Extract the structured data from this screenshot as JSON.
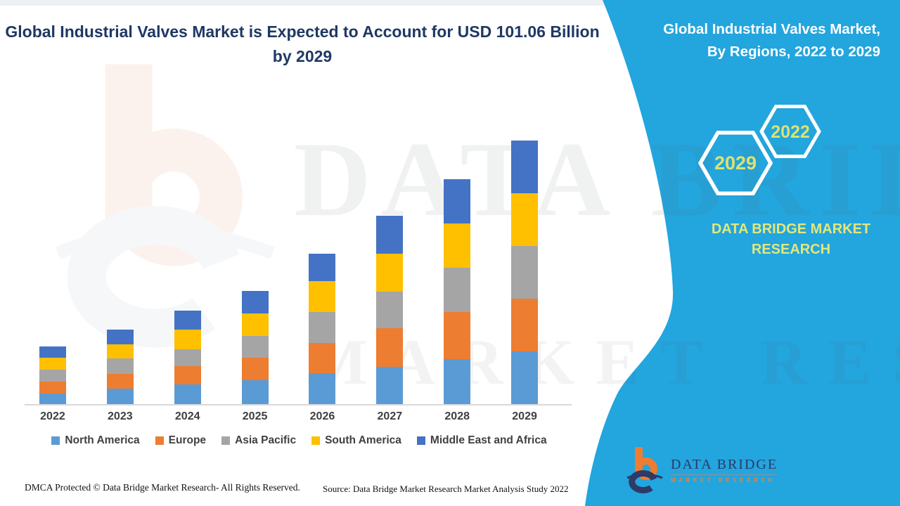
{
  "header": {
    "title": "Global Industrial Valves Market is Expected to Account for USD 101.06 Billion by 2029",
    "title_color": "#1F3864"
  },
  "side_panel": {
    "background_color": "#23A5DE",
    "heading_line1": "Global Industrial Valves Market,",
    "heading_line2": "By Regions, 2022 to 2029",
    "hexagons": [
      {
        "label": "2022"
      },
      {
        "label": "2029"
      }
    ],
    "brand_text": "DATA BRIDGE MARKET RESEARCH",
    "accent_text_color": "#DDE26E"
  },
  "chart_data": {
    "type": "bar",
    "stacked": true,
    "title": "Global Industrial Valves Market, By Regions, 2022 to 2029",
    "xlabel": "",
    "ylabel": "",
    "unit": "USD billion (estimated from bar heights; 2029 total given as 101.06)",
    "gridlines": false,
    "legend_position": "bottom",
    "categories": [
      "2022",
      "2023",
      "2024",
      "2025",
      "2026",
      "2027",
      "2028",
      "2029"
    ],
    "series": [
      {
        "name": "North America",
        "color": "#5B9BD5",
        "values": [
          4.0,
          5.8,
          7.5,
          9.2,
          11.9,
          14.4,
          17.2,
          20.2
        ]
      },
      {
        "name": "Europe",
        "color": "#ED7D31",
        "values": [
          4.7,
          5.8,
          7.1,
          8.5,
          11.6,
          14.8,
          18.0,
          20.2
        ]
      },
      {
        "name": "Asia Pacific",
        "color": "#A5A5A5",
        "values": [
          4.5,
          5.8,
          6.5,
          8.5,
          11.9,
          13.9,
          17.1,
          20.2
        ]
      },
      {
        "name": "South America",
        "color": "#FFC000",
        "values": [
          4.5,
          5.6,
          7.4,
          8.7,
          11.9,
          14.6,
          17.1,
          20.2
        ]
      },
      {
        "name": "Middle East and Africa",
        "color": "#4472C4",
        "values": [
          4.3,
          5.7,
          7.4,
          8.4,
          10.5,
          14.6,
          16.9,
          20.26
        ]
      }
    ],
    "totals_estimated": [
      22.0,
      28.7,
      35.9,
      43.3,
      57.8,
      72.3,
      86.3,
      101.06
    ],
    "note": "2029 total labeled as USD 101.06 billion in headline"
  },
  "watermarks": {
    "row1": "DATA BRIDGE",
    "row2": "MARKET RESEARCH"
  },
  "footer": {
    "dmca": "DMCA Protected © Data Bridge Market Research- All Rights Reserved.",
    "source": "Source: Data Bridge Market Research Market Analysis Study 2022"
  },
  "logo": {
    "name": "DATA BRIDGE",
    "subtitle": "MARKET RESEARCH"
  }
}
